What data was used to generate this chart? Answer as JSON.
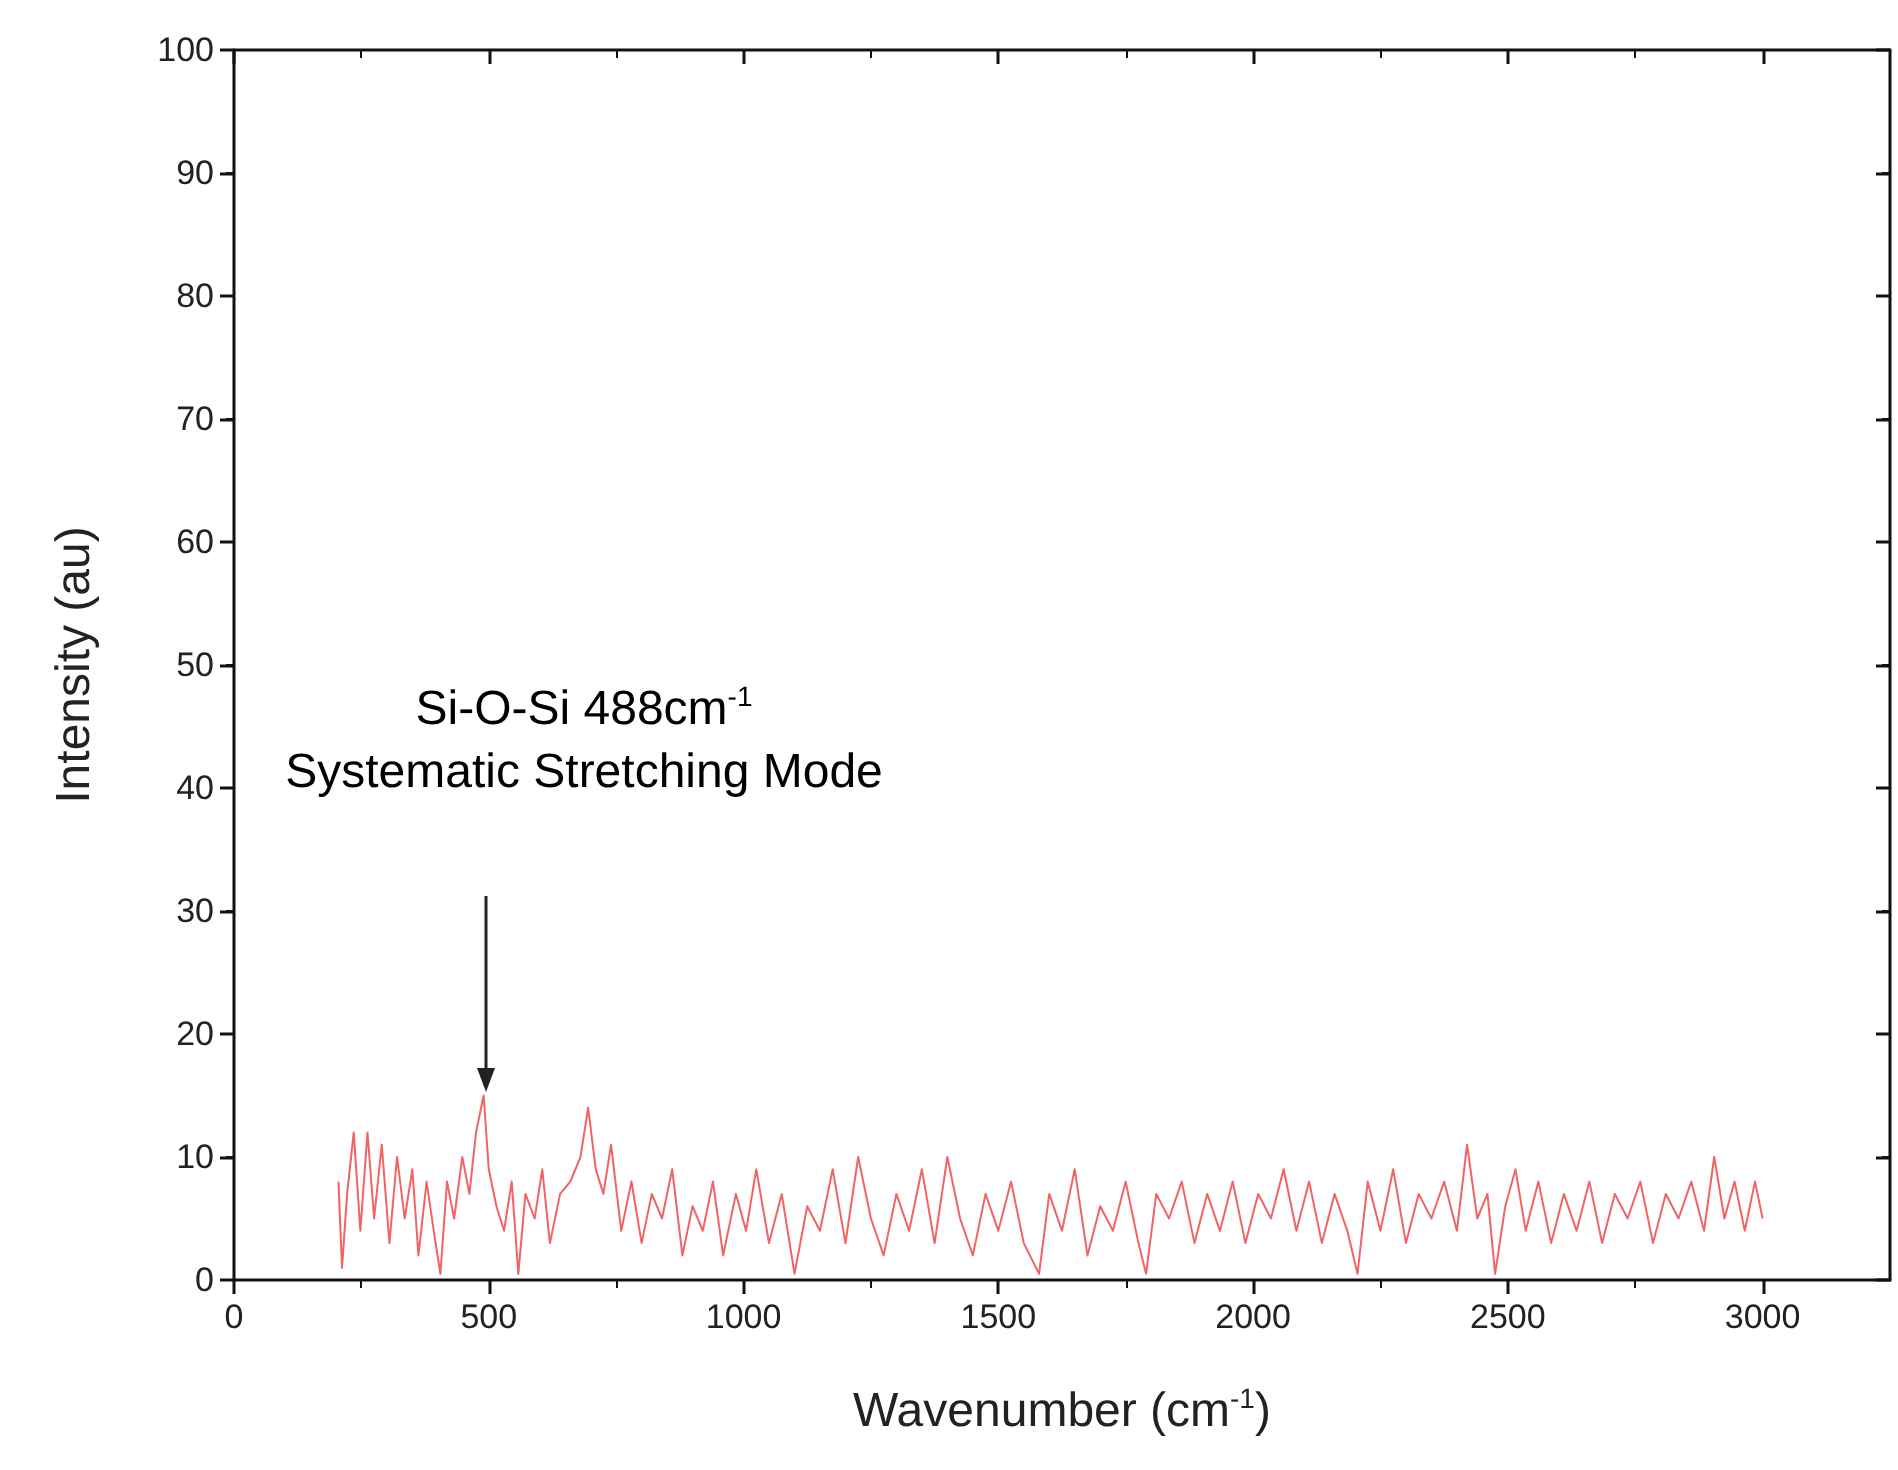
{
  "chart_data": {
    "type": "line",
    "xlabel": "Wavenumber (cm$^{-1}$)",
    "ylabel": "Intensity (au)",
    "xlim": [
      0,
      3250
    ],
    "xticks": [
      0,
      500,
      1000,
      1500,
      2000,
      2500,
      3000
    ],
    "ylim": [
      0,
      100
    ],
    "yticks": [
      0,
      10,
      20,
      30,
      40,
      50,
      60,
      70,
      80,
      90,
      100
    ],
    "grid": false,
    "marker": "none",
    "line_style": "solid",
    "annotations": [
      "Si-O-Si 488cm$^{-1}$",
      "Systematic Stretching Mode"
    ],
    "series": [
      {
        "color": "#f06464",
        "x": [
          205,
          212,
          222,
          235,
          248,
          262,
          275,
          290,
          305,
          320,
          335,
          350,
          362,
          378,
          392,
          405,
          418,
          432,
          448,
          462,
          475,
          490,
          500,
          515,
          530,
          545,
          558,
          572,
          590,
          605,
          620,
          640,
          660,
          680,
          695,
          710,
          725,
          740,
          760,
          780,
          800,
          820,
          840,
          860,
          880,
          900,
          920,
          940,
          960,
          985,
          1005,
          1025,
          1050,
          1075,
          1100,
          1125,
          1150,
          1175,
          1200,
          1225,
          1250,
          1275,
          1300,
          1325,
          1350,
          1375,
          1400,
          1425,
          1450,
          1475,
          1500,
          1525,
          1550,
          1580,
          1600,
          1625,
          1650,
          1675,
          1700,
          1725,
          1750,
          1775,
          1790,
          1810,
          1835,
          1860,
          1885,
          1910,
          1935,
          1960,
          1985,
          2010,
          2035,
          2060,
          2085,
          2110,
          2135,
          2160,
          2185,
          2205,
          2225,
          2250,
          2275,
          2300,
          2325,
          2350,
          2375,
          2400,
          2420,
          2440,
          2460,
          2475,
          2495,
          2515,
          2535,
          2560,
          2585,
          2610,
          2635,
          2660,
          2685,
          2710,
          2735,
          2760,
          2785,
          2810,
          2835,
          2860,
          2885,
          2905,
          2925,
          2945,
          2965,
          2985,
          3000
        ],
        "values": [
          8,
          1,
          7,
          12,
          4,
          12,
          5,
          11,
          3,
          10,
          5,
          9,
          2,
          8,
          4,
          0.5,
          8,
          5,
          10,
          7,
          12,
          15,
          9,
          6,
          4,
          8,
          0.5,
          7,
          5,
          9,
          3,
          7,
          8,
          10,
          14,
          9,
          7,
          11,
          4,
          8,
          3,
          7,
          5,
          9,
          2,
          6,
          4,
          8,
          2,
          7,
          4,
          9,
          3,
          7,
          0.5,
          6,
          4,
          9,
          3,
          10,
          5,
          2,
          7,
          4,
          9,
          3,
          10,
          5,
          2,
          7,
          4,
          8,
          3,
          0.5,
          7,
          4,
          9,
          2,
          6,
          4,
          8,
          3,
          0.5,
          7,
          5,
          8,
          3,
          7,
          4,
          8,
          3,
          7,
          5,
          9,
          4,
          8,
          3,
          7,
          4,
          0.5,
          8,
          4,
          9,
          3,
          7,
          5,
          8,
          4,
          11,
          5,
          7,
          0.5,
          6,
          9,
          4,
          8,
          3,
          7,
          4,
          8,
          3,
          7,
          5,
          8,
          3,
          7,
          5,
          8,
          4,
          10,
          5,
          8,
          4,
          8,
          5
        ]
      }
    ]
  }
}
